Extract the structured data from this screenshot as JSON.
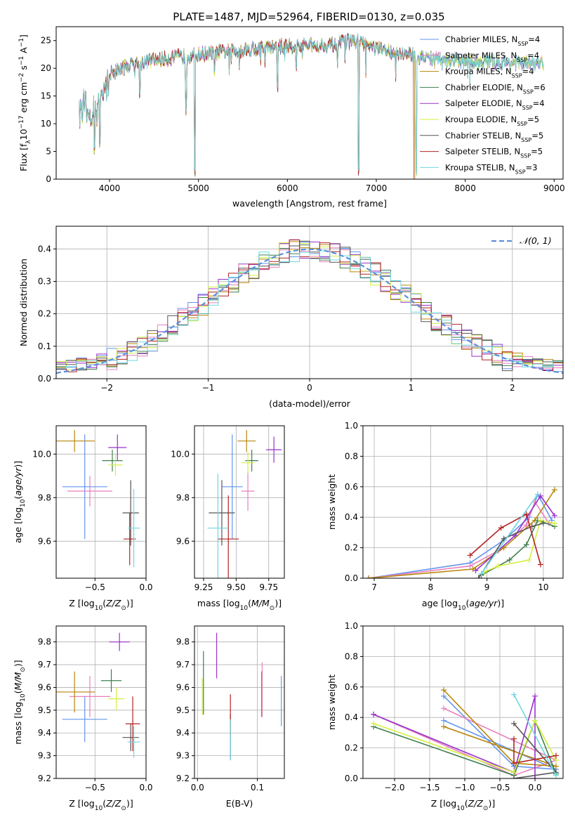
{
  "title": "PLATE=1487, MJD=52964, FIBERID=0130, z=0.035",
  "colors": [
    "#6495ED",
    "#EE82EE",
    "#B8860B",
    "#2E8B57",
    "#9932CC",
    "#DFFF00",
    "#000000",
    "#8B0000",
    "#40E0D0"
  ],
  "legend": [
    {
      "name": "Chabrier MILES",
      "nssp": "4",
      "color": "#6495ed"
    },
    {
      "name": "Salpeter MILES",
      "nssp": "4",
      "color": "#e87fbe"
    },
    {
      "name": "Kroupa MILES",
      "nssp": "4",
      "color": "#b8860b"
    },
    {
      "name": "Chabrier ELODIE",
      "nssp": "6",
      "color": "#3f7f4f"
    },
    {
      "name": "Salpeter ELODIE",
      "nssp": "4",
      "color": "#9932cc"
    },
    {
      "name": "Kroupa ELODIE",
      "nssp": "5",
      "color": "#d4ef42"
    },
    {
      "name": "Chabrier STELIB",
      "nssp": "5",
      "color": "#555555"
    },
    {
      "name": "Salpeter STELIB",
      "nssp": "5",
      "color": "#b22222"
    },
    {
      "name": "Kroupa STELIB",
      "nssp": "3",
      "color": "#6fd7e0"
    }
  ],
  "chart_data": [
    {
      "id": "spectrum",
      "type": "line",
      "xlabel": "wavelength [Angstrom, rest frame]",
      "ylabel": "Flux [f_λ 10^-17 erg cm^-2 s^-1 A^-1]",
      "xlim": [
        3400,
        9100
      ],
      "ylim": [
        0,
        27.5
      ],
      "xticks": [
        4000,
        5000,
        6000,
        7000,
        8000,
        9000
      ],
      "yticks": [
        0,
        5,
        10,
        15,
        20,
        25
      ],
      "grid": false,
      "legend_loc": "upper right",
      "continuum": [
        [
          3660,
          13
        ],
        [
          3800,
          12
        ],
        [
          3900,
          14
        ],
        [
          4000,
          19
        ],
        [
          4200,
          20.5
        ],
        [
          4500,
          21.5
        ],
        [
          5000,
          22.5
        ],
        [
          5500,
          23.3
        ],
        [
          6000,
          24
        ],
        [
          6500,
          24.2
        ],
        [
          6750,
          25
        ],
        [
          7000,
          23.5
        ],
        [
          7500,
          22
        ],
        [
          8000,
          21.2
        ],
        [
          8500,
          21
        ],
        [
          8880,
          20.8
        ]
      ],
      "absorption": [
        [
          3830,
          4
        ],
        [
          3890,
          5
        ],
        [
          4340,
          14
        ],
        [
          4860,
          12
        ],
        [
          4960,
          0
        ],
        [
          5180,
          18
        ],
        [
          5890,
          15
        ],
        [
          6100,
          19
        ],
        [
          6563,
          20
        ],
        [
          6800,
          0
        ],
        [
          7450,
          0
        ]
      ]
    },
    {
      "id": "residuals",
      "type": "step",
      "xlabel": "(data-model)/error",
      "ylabel": "Normed distribution",
      "xlim": [
        -2.5,
        2.5
      ],
      "ylim": [
        0,
        0.47
      ],
      "xticks": [
        -2,
        -1,
        0,
        1,
        2
      ],
      "yticks": [
        0.0,
        0.1,
        0.2,
        0.3,
        0.4
      ],
      "grid": true,
      "legend": "𝒩(0, 1)",
      "legend_loc": "upper right",
      "bin_width": 0.1
    },
    {
      "id": "age-vs-Z",
      "type": "errorbar",
      "xlabel": "Z [log10(Z/Z⊙)]",
      "ylabel": "age  [log10(age/yr)]",
      "xlim": [
        -0.88,
        0.0
      ],
      "ylim": [
        9.43,
        10.13
      ],
      "xticks": [
        -0.5,
        0.0
      ],
      "yticks": [
        9.6,
        9.8,
        10.0
      ],
      "grid": true,
      "points": [
        {
          "x": -0.6,
          "xerr": 0.22,
          "y": 9.85,
          "yerr": 0.24
        },
        {
          "x": -0.55,
          "xerr": 0.22,
          "y": 9.83,
          "yerr": 0.07
        },
        {
          "x": -0.7,
          "xerr": 0.2,
          "y": 10.06,
          "yerr": 0.05
        },
        {
          "x": -0.33,
          "xerr": 0.1,
          "y": 9.97,
          "yerr": 0.05
        },
        {
          "x": -0.28,
          "xerr": 0.09,
          "y": 10.03,
          "yerr": 0.06
        },
        {
          "x": -0.3,
          "xerr": 0.07,
          "y": 9.95,
          "yerr": 0.05
        },
        {
          "x": -0.15,
          "xerr": 0.08,
          "y": 9.73,
          "yerr": 0.15
        },
        {
          "x": -0.16,
          "xerr": 0.06,
          "y": 9.61,
          "yerr": 0.12
        },
        {
          "x": -0.12,
          "xerr": 0.06,
          "y": 9.66,
          "yerr": 0.18
        }
      ]
    },
    {
      "id": "age-vs-mass",
      "type": "errorbar",
      "xlabel": "mass [log10(M/M⊙)]",
      "ylabel": "",
      "xlim": [
        9.18,
        9.87
      ],
      "ylim": [
        9.43,
        10.13
      ],
      "xticks": [
        9.25,
        9.5,
        9.75
      ],
      "yticks": [
        9.6,
        9.8,
        10.0
      ],
      "grid": true,
      "points": [
        {
          "x": 9.47,
          "xerr": 0.08,
          "y": 9.85,
          "yerr": 0.24
        },
        {
          "x": 9.59,
          "xerr": 0.05,
          "y": 9.83,
          "yerr": 0.09
        },
        {
          "x": 9.58,
          "xerr": 0.07,
          "y": 10.06,
          "yerr": 0.05
        },
        {
          "x": 9.62,
          "xerr": 0.05,
          "y": 9.97,
          "yerr": 0.05
        },
        {
          "x": 9.79,
          "xerr": 0.06,
          "y": 10.02,
          "yerr": 0.06
        },
        {
          "x": 9.59,
          "xerr": 0.05,
          "y": 9.96,
          "yerr": 0.05
        },
        {
          "x": 9.39,
          "xerr": 0.1,
          "y": 9.73,
          "yerr": 0.15
        },
        {
          "x": 9.44,
          "xerr": 0.08,
          "y": 9.61,
          "yerr": 0.2
        },
        {
          "x": 9.36,
          "xerr": 0.08,
          "y": 9.66,
          "yerr": 0.25
        }
      ]
    },
    {
      "id": "weight-vs-age",
      "type": "line",
      "xlabel": "age  [log10(age/yr)]",
      "ylabel": "mass weight",
      "xlim": [
        6.8,
        10.35
      ],
      "ylim": [
        0,
        1.0
      ],
      "xticks": [
        7,
        8,
        9,
        10
      ],
      "yticks": [
        0.0,
        0.2,
        0.4,
        0.6,
        0.8,
        1.0
      ],
      "grid": true,
      "series": [
        {
          "points": [
            [
              6.9,
              0.0
            ],
            [
              8.7,
              0.1
            ],
            [
              9.3,
              0.25
            ],
            [
              9.75,
              0.4
            ],
            [
              9.9,
              0.55
            ],
            [
              10.15,
              0.38
            ]
          ]
        },
        {
          "points": [
            [
              6.9,
              0.0
            ],
            [
              8.7,
              0.08
            ],
            [
              9.2,
              0.18
            ],
            [
              9.7,
              0.35
            ],
            [
              9.85,
              0.5
            ],
            [
              10.1,
              0.36
            ]
          ]
        },
        {
          "points": [
            [
              6.9,
              0.0
            ],
            [
              8.75,
              0.06
            ],
            [
              9.3,
              0.2
            ],
            [
              9.85,
              0.38
            ],
            [
              10.2,
              0.58
            ]
          ]
        },
        {
          "points": [
            [
              8.9,
              0.02
            ],
            [
              9.4,
              0.12
            ],
            [
              9.7,
              0.22
            ],
            [
              9.9,
              0.38
            ],
            [
              10.2,
              0.34
            ]
          ]
        },
        {
          "points": [
            [
              8.8,
              0.05
            ],
            [
              9.5,
              0.28
            ],
            [
              9.95,
              0.54
            ],
            [
              10.2,
              0.41
            ]
          ]
        },
        {
          "points": [
            [
              8.95,
              0.04
            ],
            [
              9.2,
              0.08
            ],
            [
              9.75,
              0.12
            ],
            [
              9.95,
              0.38
            ],
            [
              10.2,
              0.36
            ]
          ]
        },
        {
          "points": [
            [
              8.85,
              0.0
            ],
            [
              9.3,
              0.26
            ],
            [
              9.8,
              0.34
            ],
            [
              10.0,
              0.36
            ]
          ]
        },
        {
          "points": [
            [
              8.7,
              0.15
            ],
            [
              9.25,
              0.33
            ],
            [
              9.7,
              0.42
            ],
            [
              9.95,
              0.09
            ]
          ]
        },
        {
          "points": [
            [
              8.9,
              0.03
            ],
            [
              9.9,
              0.55
            ]
          ]
        }
      ]
    },
    {
      "id": "mass-vs-Z",
      "type": "errorbar",
      "xlabel": "Z [log10(Z/Z⊙)]",
      "ylabel": "mass [log10(M/M⊙)]",
      "xlim": [
        -0.88,
        0.0
      ],
      "ylim": [
        9.2,
        9.87
      ],
      "xticks": [
        -0.5,
        0.0
      ],
      "yticks": [
        9.2,
        9.3,
        9.4,
        9.5,
        9.6,
        9.7,
        9.8
      ],
      "grid": true,
      "points": [
        {
          "x": -0.6,
          "xerr": 0.22,
          "y": 9.46,
          "yerr": 0.1
        },
        {
          "x": -0.55,
          "xerr": 0.2,
          "y": 9.56,
          "yerr": 0.09
        },
        {
          "x": -0.7,
          "xerr": 0.2,
          "y": 9.58,
          "yerr": 0.09
        },
        {
          "x": -0.34,
          "xerr": 0.1,
          "y": 9.63,
          "yerr": 0.05
        },
        {
          "x": -0.26,
          "xerr": 0.1,
          "y": 9.8,
          "yerr": 0.04
        },
        {
          "x": -0.29,
          "xerr": 0.08,
          "y": 9.55,
          "yerr": 0.05
        },
        {
          "x": -0.15,
          "xerr": 0.08,
          "y": 9.38,
          "yerr": 0.06
        },
        {
          "x": -0.13,
          "xerr": 0.07,
          "y": 9.44,
          "yerr": 0.12
        },
        {
          "x": -0.12,
          "xerr": 0.06,
          "y": 9.36,
          "yerr": 0.07
        }
      ]
    },
    {
      "id": "mass-vs-EBV",
      "type": "errorbar",
      "xlabel": "E(B-V)",
      "ylabel": "",
      "xlim": [
        -0.005,
        0.145
      ],
      "ylim": [
        9.2,
        9.87
      ],
      "xticks": [
        0.0,
        0.1
      ],
      "yticks": [
        9.2,
        9.3,
        9.4,
        9.5,
        9.6,
        9.7,
        9.8
      ],
      "grid": true,
      "points": [
        {
          "x": 0.14,
          "y": 9.54,
          "yerr": 0.11
        },
        {
          "x": 0.108,
          "y": 9.59,
          "yerr": 0.12
        },
        {
          "x": 0.107,
          "y": 9.57,
          "yerr": 0.1
        },
        {
          "x": 0.01,
          "y": 9.62,
          "yerr": 0.14
        },
        {
          "x": 0.032,
          "y": 9.74,
          "yerr": 0.1
        },
        {
          "x": 0.008,
          "y": 9.56,
          "yerr": 0.08
        },
        {
          "x": 0.055,
          "y": 9.38,
          "yerr": 0.1
        },
        {
          "x": 0.055,
          "y": 9.48,
          "yerr": 0.09
        },
        {
          "x": 0.055,
          "y": 9.37,
          "yerr": 0.09
        }
      ]
    },
    {
      "id": "weight-vs-Z",
      "type": "line",
      "xlabel": "Z [log10(Z/Z⊙)]",
      "ylabel": "mass weight",
      "xlim": [
        -2.45,
        0.4
      ],
      "ylim": [
        0,
        1.0
      ],
      "xticks": [
        -2.0,
        -1.5,
        -1.0,
        -0.5,
        0.0
      ],
      "yticks": [
        0.0,
        0.2,
        0.4,
        0.6,
        0.8,
        1.0
      ],
      "grid": true,
      "series": [
        {
          "points": [
            [
              -1.3,
              0.54
            ],
            [
              -0.3,
              0.08
            ],
            [
              0.3,
              0.06
            ],
            [
              -1.3,
              0.38
            ]
          ]
        },
        {
          "points": [
            [
              -2.3,
              0.42
            ],
            [
              -0.3,
              0.02
            ],
            [
              0.3,
              0.12
            ],
            [
              -1.3,
              0.46
            ]
          ]
        },
        {
          "points": [
            [
              -1.3,
              0.58
            ],
            [
              -0.3,
              0.1
            ],
            [
              0.3,
              0.08
            ],
            [
              -1.3,
              0.34
            ]
          ]
        },
        {
          "points": [
            [
              -2.3,
              0.34
            ],
            [
              -0.3,
              0.02
            ],
            [
              0.0,
              0.38
            ],
            [
              0.3,
              0.03
            ]
          ]
        },
        {
          "points": [
            [
              -2.3,
              0.42
            ],
            [
              -0.3,
              0.04
            ],
            [
              0.0,
              0.54
            ],
            [
              -0.0,
              0.0
            ]
          ]
        },
        {
          "points": [
            [
              -2.3,
              0.36
            ],
            [
              -0.3,
              0.04
            ],
            [
              0.0,
              0.38
            ],
            [
              0.3,
              0.12
            ]
          ]
        },
        {
          "points": [
            [
              -0.3,
              0.36
            ],
            [
              0.3,
              0.04
            ],
            [
              -0.3,
              0.0
            ]
          ]
        },
        {
          "points": [
            [
              -0.3,
              0.26
            ],
            [
              -0.3,
              0.1
            ],
            [
              0.3,
              0.15
            ]
          ]
        },
        {
          "points": [
            [
              -0.3,
              0.55
            ],
            [
              0.3,
              0.02
            ]
          ]
        }
      ]
    }
  ]
}
